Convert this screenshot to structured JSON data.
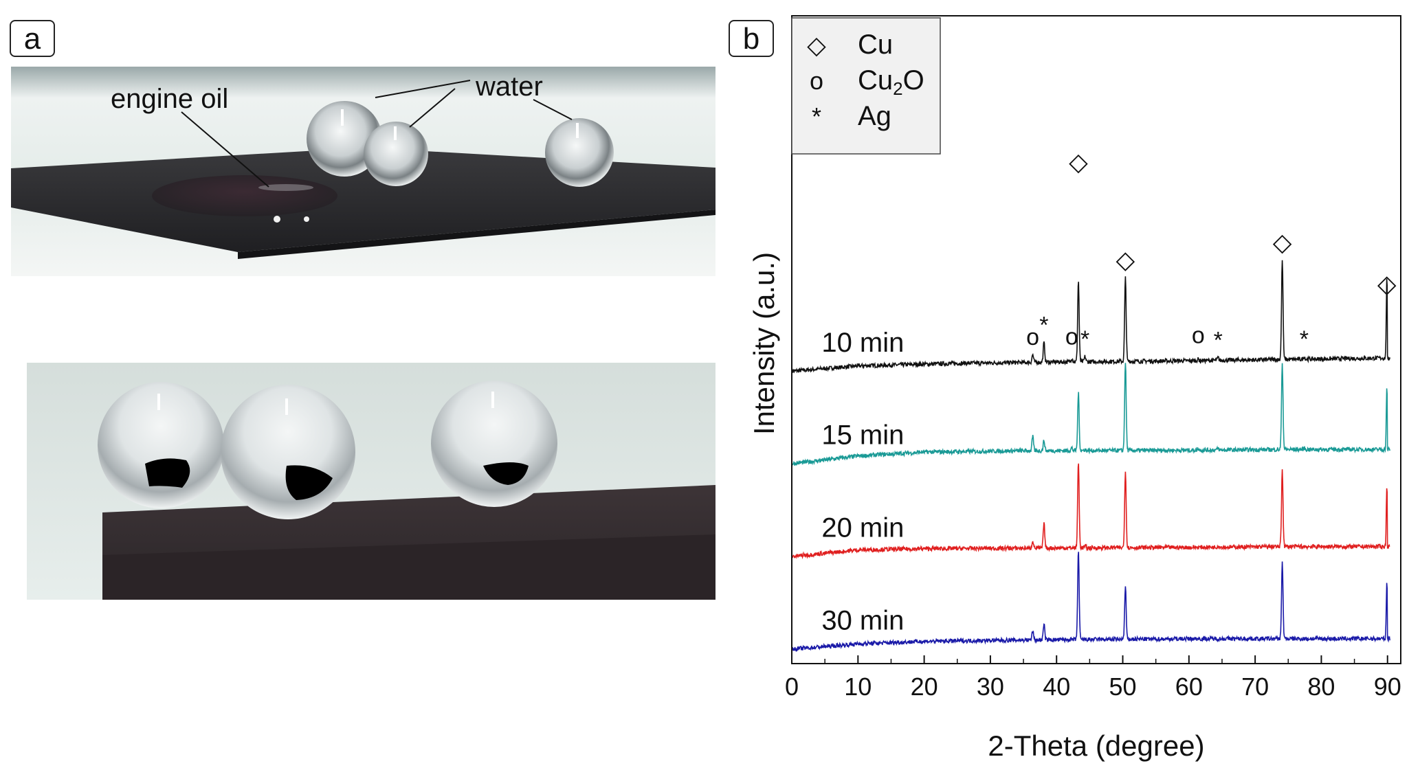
{
  "panel_a": {
    "tag": "a",
    "labels": {
      "water": "water",
      "engine_oil": "engine oil"
    }
  },
  "panel_b": {
    "tag": "b"
  },
  "chart_data": {
    "type": "line",
    "xlabel": "2-Theta (degree)",
    "ylabel": "Intensity (a.u.)",
    "xlim": [
      0,
      92
    ],
    "xticks": [
      0,
      10,
      20,
      30,
      40,
      50,
      60,
      70,
      80,
      90
    ],
    "yticks_shown": false,
    "legend": {
      "placement": "top-left",
      "entries": [
        {
          "symbol": "◇",
          "label": "Cu"
        },
        {
          "symbol": "o",
          "label": "Cu",
          "subscript": "2",
          "label_suffix": "O"
        },
        {
          "symbol": "*",
          "label": "Ag"
        }
      ]
    },
    "peak_markers": [
      {
        "symbol": "◇",
        "x": 43.3
      },
      {
        "symbol": "◇",
        "x": 50.4
      },
      {
        "symbol": "◇",
        "x": 74.1
      },
      {
        "symbol": "◇",
        "x": 89.9
      },
      {
        "symbol": "o",
        "x": 36.4
      },
      {
        "symbol": "*",
        "x": 38.1
      },
      {
        "symbol": "o",
        "x": 42.3
      },
      {
        "symbol": "*",
        "x": 44.3
      },
      {
        "symbol": "o",
        "x": 61.4
      },
      {
        "symbol": "*",
        "x": 64.4
      },
      {
        "symbol": "*",
        "x": 77.4
      }
    ],
    "series": [
      {
        "name": "10 min",
        "color": "#111111",
        "offset": 3,
        "baseline": [
          [
            0,
            0
          ],
          [
            10,
            0.2
          ],
          [
            25,
            0.3
          ],
          [
            40,
            0.35
          ],
          [
            60,
            0.4
          ],
          [
            75,
            0.45
          ],
          [
            89,
            0.5
          ]
        ],
        "peaks": [
          [
            36.4,
            0.3
          ],
          [
            38.1,
            0.75
          ],
          [
            42.3,
            0.15
          ],
          [
            43.3,
            3.1
          ],
          [
            44.3,
            0.2
          ],
          [
            50.4,
            3.2
          ],
          [
            61.4,
            0.05
          ],
          [
            64.4,
            0.1
          ],
          [
            74.1,
            3.8
          ],
          [
            77.4,
            0.1
          ],
          [
            89.9,
            3.05
          ]
        ]
      },
      {
        "name": "15 min",
        "color": "#1a9a96",
        "offset": 2,
        "baseline": [
          [
            0,
            0
          ],
          [
            10,
            0.3
          ],
          [
            20,
            0.45
          ],
          [
            35,
            0.5
          ],
          [
            60,
            0.52
          ],
          [
            75,
            0.55
          ],
          [
            89,
            0.55
          ]
        ],
        "peaks": [
          [
            36.4,
            0.55
          ],
          [
            38.1,
            0.4
          ],
          [
            42.3,
            0.1
          ],
          [
            43.3,
            2.2
          ],
          [
            44.3,
            0.05
          ],
          [
            50.4,
            3.4
          ],
          [
            61.4,
            0.07
          ],
          [
            64.4,
            0.06
          ],
          [
            74.1,
            3.3
          ],
          [
            77.4,
            0.05
          ],
          [
            89.9,
            2.35
          ]
        ]
      },
      {
        "name": "20 min",
        "color": "#e01f1f",
        "offset": 1,
        "baseline": [
          [
            0,
            0
          ],
          [
            10,
            0.25
          ],
          [
            20,
            0.3
          ],
          [
            35,
            0.32
          ],
          [
            60,
            0.35
          ],
          [
            75,
            0.38
          ],
          [
            89,
            0.38
          ]
        ],
        "peaks": [
          [
            36.4,
            0.3
          ],
          [
            38.1,
            0.95
          ],
          [
            43.3,
            3.3
          ],
          [
            44.3,
            0.07
          ],
          [
            50.4,
            2.95
          ],
          [
            64.4,
            0.05
          ],
          [
            74.1,
            2.95
          ],
          [
            89.9,
            2.3
          ]
        ]
      },
      {
        "name": "30 min",
        "color": "#1a1aa8",
        "offset": 0,
        "baseline": [
          [
            0,
            0
          ],
          [
            10,
            0.2
          ],
          [
            20,
            0.3
          ],
          [
            35,
            0.35
          ],
          [
            60,
            0.4
          ],
          [
            75,
            0.4
          ],
          [
            89,
            0.4
          ]
        ],
        "peaks": [
          [
            36.4,
            0.35
          ],
          [
            38.1,
            0.6
          ],
          [
            43.3,
            3.4
          ],
          [
            50.4,
            2.0
          ],
          [
            74.1,
            2.9
          ],
          [
            89.9,
            2.2
          ]
        ]
      }
    ]
  }
}
